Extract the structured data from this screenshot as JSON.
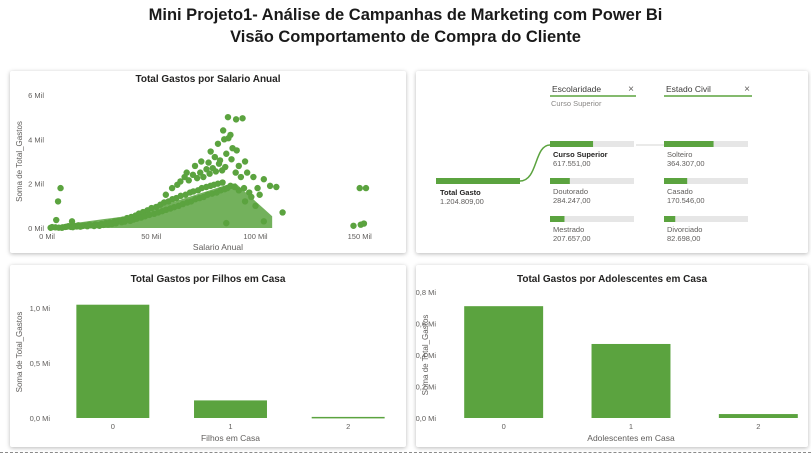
{
  "page": {
    "title_line1": "Mini Projeto1- Análise de Campanhas de Marketing com Power Bi",
    "title_line2": "Visão Comportamento de Compra do Cliente"
  },
  "colors": {
    "accent": "#5BA33F",
    "track": "#E6E6E6",
    "axis_text": "#605E5C"
  },
  "chart_data": [
    {
      "type": "scatter",
      "title": "Total Gastos por Salario Anual",
      "xlabel": "Salario Anual",
      "ylabel": "Soma de Total_Gastos",
      "x_ticks": [
        "0 Mil",
        "50 Mil",
        "100 Mil",
        "150 Mil"
      ],
      "y_ticks": [
        "0 Mil",
        "2 Mil",
        "4 Mil",
        "6 Mil"
      ],
      "xlim": [
        0,
        165000
      ],
      "ylim": [
        0,
        6000
      ],
      "points": [
        [
          1730,
          10
        ],
        [
          2447,
          40
        ],
        [
          4023,
          30
        ],
        [
          4428,
          360
        ],
        [
          5305,
          1200
        ],
        [
          5648,
          15
        ],
        [
          7144,
          10
        ],
        [
          7500,
          30
        ],
        [
          8820,
          50
        ],
        [
          9548,
          60
        ],
        [
          10245,
          80
        ],
        [
          11448,
          50
        ],
        [
          12393,
          40
        ],
        [
          13084,
          90
        ],
        [
          14188,
          70
        ],
        [
          15038,
          120
        ],
        [
          15345,
          80
        ],
        [
          16014,
          60
        ],
        [
          17003,
          90
        ],
        [
          18100,
          110
        ],
        [
          19346,
          80
        ],
        [
          20130,
          150
        ],
        [
          21063,
          120
        ],
        [
          22585,
          90
        ],
        [
          23148,
          160
        ],
        [
          24206,
          130
        ],
        [
          25176,
          100
        ],
        [
          26095,
          180
        ],
        [
          27071,
          140
        ],
        [
          28249,
          220
        ],
        [
          29298,
          160
        ],
        [
          30096,
          250
        ],
        [
          31158,
          180
        ],
        [
          32474,
          300
        ],
        [
          33051,
          210
        ],
        [
          34176,
          330
        ],
        [
          35790,
          260
        ],
        [
          36550,
          380
        ],
        [
          37284,
          290
        ],
        [
          38410,
          450
        ],
        [
          39922,
          320
        ],
        [
          40464,
          500
        ],
        [
          41452,
          380
        ],
        [
          42429,
          560
        ],
        [
          43020,
          420
        ],
        [
          44078,
          650
        ],
        [
          45146,
          470
        ],
        [
          46097,
          720
        ],
        [
          47025,
          530
        ],
        [
          48192,
          800
        ],
        [
          49096,
          590
        ],
        [
          50150,
          900
        ],
        [
          51373,
          640
        ],
        [
          52413,
          950
        ],
        [
          53312,
          700
        ],
        [
          54356,
          1050
        ],
        [
          55250,
          760
        ],
        [
          56181,
          1150
        ],
        [
          57091,
          820
        ],
        [
          58316,
          1200
        ],
        [
          59184,
          880
        ],
        [
          60161,
          1300
        ],
        [
          61010,
          940
        ],
        [
          62058,
          1350
        ],
        [
          63120,
          1000
        ],
        [
          64140,
          1450
        ],
        [
          65176,
          1080
        ],
        [
          66476,
          1500
        ],
        [
          67309,
          1150
        ],
        [
          68627,
          1600
        ],
        [
          69139,
          1200
        ],
        [
          70200,
          1650
        ],
        [
          71107,
          1300
        ],
        [
          72460,
          1700
        ],
        [
          73170,
          1350
        ],
        [
          74250,
          1800
        ],
        [
          75100,
          1400
        ],
        [
          76400,
          1850
        ],
        [
          77000,
          1500
        ],
        [
          78400,
          1900
        ],
        [
          79200,
          1550
        ],
        [
          80100,
          1950
        ],
        [
          81400,
          1600
        ],
        [
          82000,
          2000
        ],
        [
          83300,
          1700
        ],
        [
          84200,
          2050
        ],
        [
          85200,
          1750
        ],
        [
          86500,
          1800
        ],
        [
          88000,
          1900
        ],
        [
          90000,
          1850
        ],
        [
          92000,
          1700
        ],
        [
          94500,
          1800
        ],
        [
          97000,
          1600
        ],
        [
          57000,
          1500
        ],
        [
          60000,
          1800
        ],
        [
          62500,
          1950
        ],
        [
          64000,
          2100
        ],
        [
          66000,
          2300
        ],
        [
          68000,
          2150
        ],
        [
          70000,
          2400
        ],
        [
          72000,
          2250
        ],
        [
          73500,
          2500
        ],
        [
          75000,
          2300
        ],
        [
          76500,
          2650
        ],
        [
          78000,
          2450
        ],
        [
          79500,
          2700
        ],
        [
          81000,
          2550
        ],
        [
          82500,
          2900
        ],
        [
          84000,
          2600
        ],
        [
          85500,
          2750
        ],
        [
          67000,
          2500
        ],
        [
          71000,
          2800
        ],
        [
          74000,
          3000
        ],
        [
          77500,
          2950
        ],
        [
          80500,
          3200
        ],
        [
          83000,
          3050
        ],
        [
          86000,
          3350
        ],
        [
          88500,
          3100
        ],
        [
          89000,
          3600
        ],
        [
          91000,
          3500
        ],
        [
          78500,
          3450
        ],
        [
          82000,
          3800
        ],
        [
          84500,
          4400
        ],
        [
          87000,
          4050
        ],
        [
          85000,
          4000
        ],
        [
          88000,
          4200
        ],
        [
          86800,
          5000
        ],
        [
          90700,
          4900
        ],
        [
          93800,
          4950
        ],
        [
          95000,
          3000
        ],
        [
          92000,
          2800
        ],
        [
          90500,
          2500
        ],
        [
          93000,
          2300
        ],
        [
          96000,
          2500
        ],
        [
          99000,
          2300
        ],
        [
          101000,
          1800
        ],
        [
          104000,
          2200
        ],
        [
          107000,
          1900
        ],
        [
          110000,
          1850
        ],
        [
          113000,
          700
        ],
        [
          6500,
          1800
        ],
        [
          12000,
          300
        ],
        [
          100000,
          1000
        ],
        [
          98000,
          1400
        ],
        [
          95000,
          1200
        ],
        [
          102000,
          1500
        ],
        [
          150000,
          1800
        ],
        [
          153000,
          1800
        ],
        [
          147000,
          100
        ],
        [
          150500,
          150
        ],
        [
          152000,
          200
        ],
        [
          86000,
          220
        ],
        [
          104000,
          300
        ]
      ]
    },
    {
      "type": "decomposition-tree",
      "root": {
        "label": "Total Gasto",
        "value": "1.204.809,00",
        "amount": 1204809
      },
      "levels": [
        {
          "header": "Escolaridade",
          "close": "×",
          "selection": "Curso Superior",
          "nodes": [
            {
              "label": "Curso Superior",
              "value": "617.551,00",
              "amount": 617551,
              "selected": true
            },
            {
              "label": "Doutorado",
              "value": "284.247,00",
              "amount": 284247,
              "selected": false
            },
            {
              "label": "Mestrado",
              "value": "207.657,00",
              "amount": 207657,
              "selected": false
            }
          ]
        },
        {
          "header": "Estado Civil",
          "close": "×",
          "nodes": [
            {
              "label": "Solteiro",
              "value": "364.307,00",
              "amount": 364307
            },
            {
              "label": "Casado",
              "value": "170.546,00",
              "amount": 170546
            },
            {
              "label": "Divorciado",
              "value": "82.698,00",
              "amount": 82698
            }
          ]
        }
      ]
    },
    {
      "type": "bar",
      "title": "Total Gastos por Filhos em Casa",
      "xlabel": "Filhos em Casa",
      "ylabel": "Soma de Total_Gastos",
      "categories": [
        "0",
        "1",
        "2"
      ],
      "values": [
        1.03,
        0.16,
        0.01
      ],
      "y_ticks": [
        "0,0 Mi",
        "0,5 Mi",
        "1,0 Mi"
      ],
      "ylim": [
        0,
        1.2
      ]
    },
    {
      "type": "bar",
      "title": "Total Gastos por Adolescentes em Casa",
      "xlabel": "Adolescentes em Casa",
      "ylabel": "Soma de Total_Gastos",
      "categories": [
        "0",
        "1",
        "2"
      ],
      "values": [
        0.71,
        0.47,
        0.025
      ],
      "y_ticks": [
        "0,0 Mi",
        "0,2 Mi",
        "0,4 Mi",
        "0,6 Mi",
        "0,8 Mi"
      ],
      "ylim": [
        0,
        0.8
      ]
    }
  ]
}
